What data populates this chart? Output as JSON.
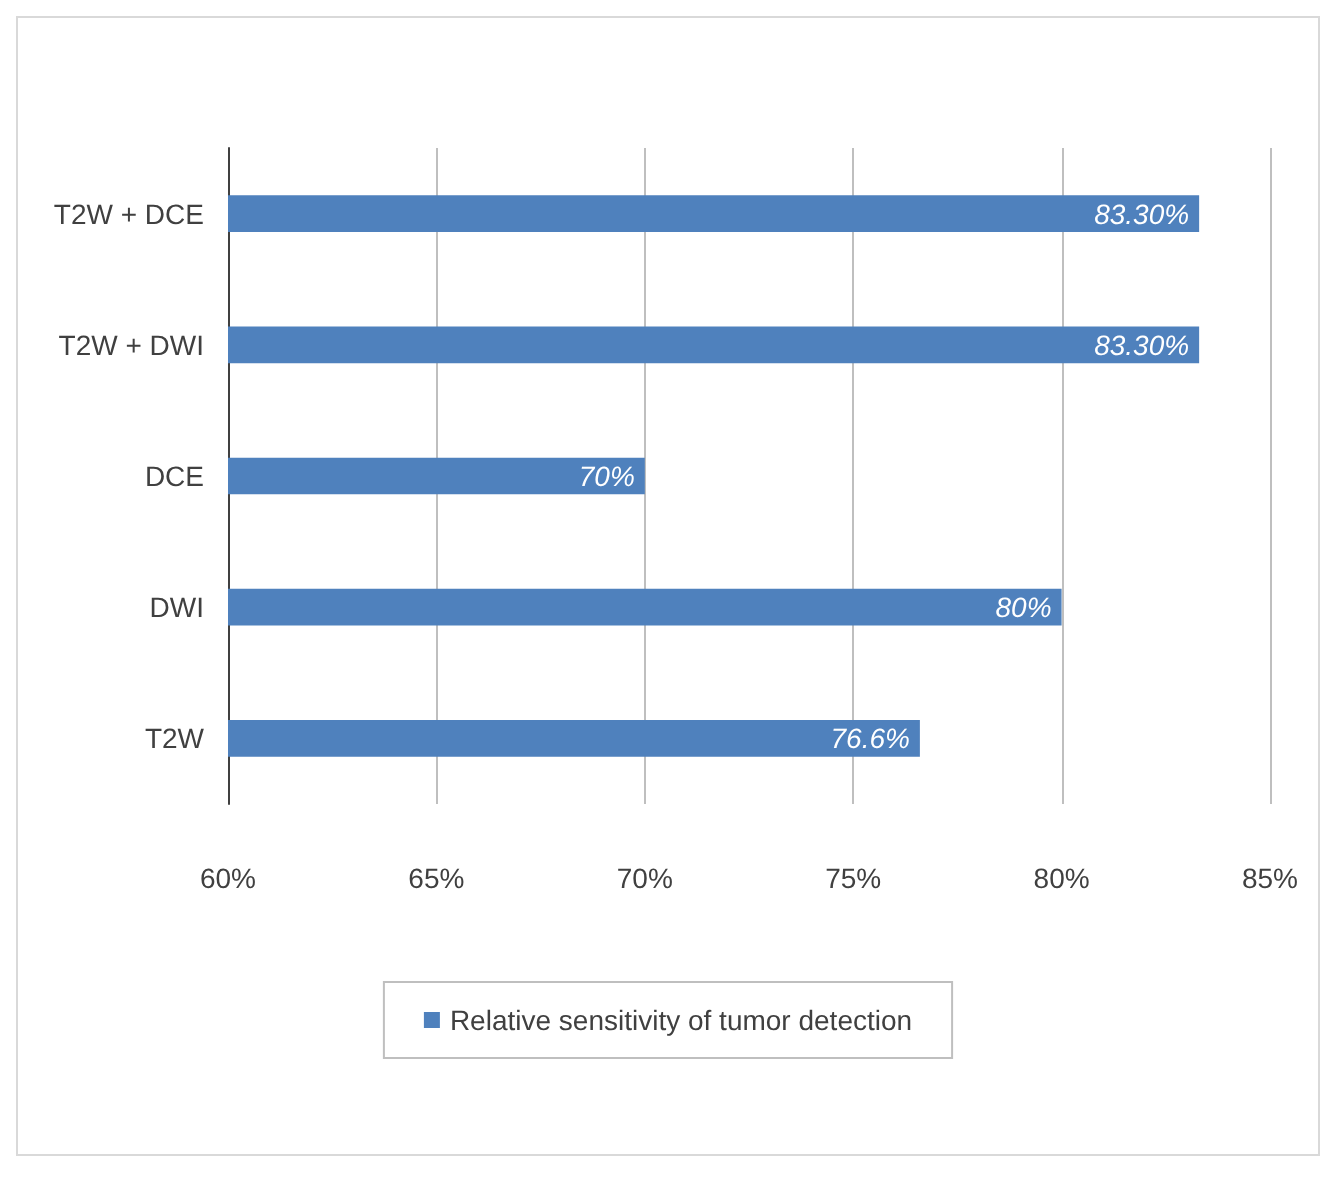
{
  "chart_data": {
    "type": "bar",
    "orientation": "horizontal",
    "categories": [
      "T2W + DCE",
      "T2W + DWI",
      "DCE",
      "DWI",
      "T2W"
    ],
    "series": [
      {
        "name": "Relative sensitivity of tumor detection",
        "color": "#4f81bd",
        "values": [
          83.3,
          83.3,
          70,
          80,
          76.6
        ],
        "value_labels": [
          "83.30%",
          "83.30%",
          "70%",
          "80%",
          "76.6%"
        ]
      }
    ],
    "xlim": [
      60,
      85
    ],
    "xticks": [
      {
        "value": 60,
        "label": "60%"
      },
      {
        "value": 65,
        "label": "65%"
      },
      {
        "value": 70,
        "label": "70%"
      },
      {
        "value": 75,
        "label": "75%"
      },
      {
        "value": 80,
        "label": "80%"
      },
      {
        "value": 85,
        "label": "85%"
      }
    ],
    "grid": "x",
    "legend": "bottom"
  }
}
